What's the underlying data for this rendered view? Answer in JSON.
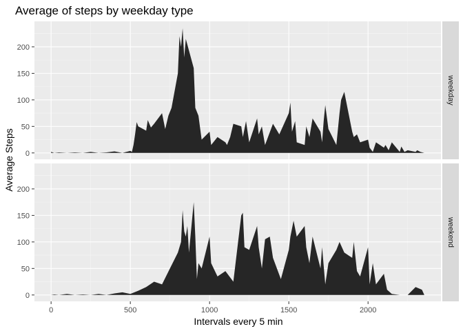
{
  "chart_data": {
    "type": "area",
    "title": "Average of steps by weekday type",
    "xlabel": "Intervals every 5 min",
    "ylabel": "Average Steps",
    "xlim": [
      -105,
      2460
    ],
    "ylim": [
      -12,
      248
    ],
    "x_ticks": [
      0,
      500,
      1000,
      1500,
      2000
    ],
    "x_tick_labels": [
      "0",
      "500",
      "1000",
      "1500",
      "2000"
    ],
    "y_ticks": [
      0,
      50,
      100,
      150,
      200
    ],
    "y_tick_labels": [
      "0",
      "50",
      "100",
      "150",
      "200"
    ],
    "grid": true,
    "facets": [
      {
        "name": "weekday",
        "x": [
          0,
          20,
          50,
          100,
          150,
          200,
          250,
          300,
          350,
          400,
          450,
          500,
          510,
          520,
          530,
          540,
          550,
          600,
          610,
          630,
          650,
          700,
          720,
          740,
          760,
          800,
          810,
          820,
          830,
          840,
          850,
          900,
          910,
          930,
          950,
          1000,
          1010,
          1050,
          1100,
          1110,
          1130,
          1150,
          1200,
          1210,
          1230,
          1250,
          1300,
          1310,
          1330,
          1350,
          1400,
          1420,
          1440,
          1500,
          1510,
          1520,
          1540,
          1550,
          1600,
          1610,
          1630,
          1650,
          1700,
          1710,
          1720,
          1730,
          1750,
          1800,
          1820,
          1830,
          1850,
          1900,
          1910,
          1930,
          1950,
          2000,
          2010,
          2030,
          2050,
          2100,
          2110,
          2130,
          2150,
          2200,
          2210,
          2230,
          2250,
          2300,
          2310,
          2330,
          2355
        ],
        "y": [
          2,
          0,
          1,
          0,
          1,
          0,
          2,
          0,
          1,
          3,
          0,
          4,
          2,
          15,
          35,
          58,
          50,
          42,
          62,
          48,
          55,
          75,
          45,
          70,
          85,
          150,
          220,
          200,
          235,
          180,
          215,
          160,
          85,
          70,
          25,
          40,
          15,
          30,
          20,
          15,
          30,
          55,
          50,
          30,
          60,
          20,
          65,
          35,
          50,
          15,
          55,
          45,
          35,
          75,
          95,
          40,
          60,
          20,
          15,
          50,
          30,
          65,
          40,
          20,
          60,
          90,
          45,
          15,
          75,
          100,
          115,
          40,
          30,
          35,
          20,
          25,
          10,
          2,
          20,
          10,
          15,
          5,
          20,
          2,
          12,
          2,
          5,
          2,
          5,
          2,
          0
        ]
      },
      {
        "name": "weekend",
        "x": [
          0,
          20,
          50,
          100,
          150,
          200,
          250,
          300,
          350,
          400,
          450,
          500,
          550,
          600,
          650,
          700,
          750,
          800,
          820,
          830,
          840,
          850,
          860,
          870,
          900,
          910,
          920,
          930,
          950,
          1000,
          1010,
          1050,
          1100,
          1150,
          1200,
          1210,
          1220,
          1250,
          1300,
          1310,
          1330,
          1350,
          1380,
          1400,
          1450,
          1500,
          1510,
          1530,
          1550,
          1600,
          1610,
          1630,
          1650,
          1700,
          1710,
          1730,
          1750,
          1800,
          1820,
          1850,
          1900,
          1910,
          1930,
          1950,
          2000,
          2010,
          2030,
          2050,
          2100,
          2120,
          2150,
          2200,
          2250,
          2300,
          2340,
          2355
        ],
        "y": [
          0,
          1,
          0,
          2,
          0,
          1,
          0,
          2,
          0,
          3,
          5,
          2,
          8,
          15,
          25,
          20,
          50,
          80,
          100,
          160,
          120,
          110,
          130,
          80,
          175,
          110,
          30,
          60,
          50,
          110,
          60,
          35,
          45,
          25,
          150,
          155,
          90,
          85,
          130,
          90,
          50,
          105,
          110,
          70,
          30,
          85,
          110,
          140,
          110,
          130,
          90,
          60,
          110,
          50,
          90,
          20,
          60,
          85,
          100,
          80,
          70,
          100,
          45,
          35,
          90,
          20,
          60,
          20,
          40,
          10,
          2,
          0,
          0,
          15,
          10,
          0
        ]
      }
    ]
  }
}
